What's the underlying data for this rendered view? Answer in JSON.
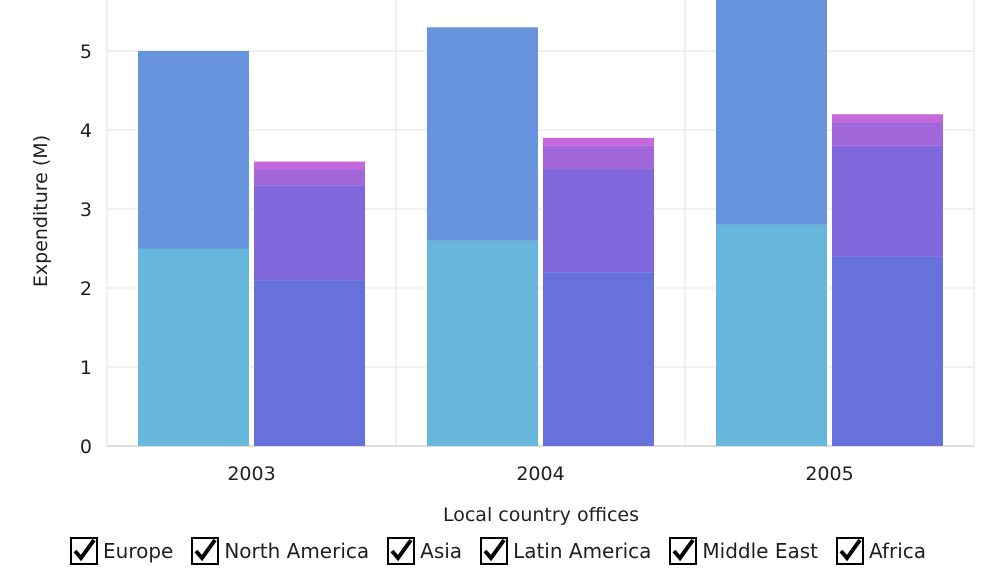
{
  "chart_data": {
    "type": "bar",
    "stacked": true,
    "categories": [
      "2003",
      "2004",
      "2005"
    ],
    "xlabel": "Local country offices",
    "ylabel": "Expenditure (M)",
    "ylim": [
      0,
      5.6
    ],
    "yticks": [
      0,
      1,
      2,
      3,
      4,
      5
    ],
    "grid": true,
    "legend_position": "bottom",
    "stacks": [
      {
        "group": "left",
        "series": [
          {
            "name": "Europe",
            "color": "#67b7dc",
            "values": [
              2.5,
              2.6,
              2.8
            ]
          },
          {
            "name": "North America",
            "color": "#6794dc",
            "values": [
              2.5,
              2.7,
              3.0
            ]
          }
        ]
      },
      {
        "group": "right",
        "series": [
          {
            "name": "Asia",
            "color": "#6771dc",
            "values": [
              2.1,
              2.2,
              2.4
            ]
          },
          {
            "name": "Latin America",
            "color": "#8067dc",
            "values": [
              1.2,
              1.3,
              1.4
            ]
          },
          {
            "name": "Middle East",
            "color": "#a367dc",
            "values": [
              0.2,
              0.3,
              0.3
            ]
          },
          {
            "name": "Africa",
            "color": "#c767dc",
            "values": [
              0.1,
              0.1,
              0.1
            ]
          }
        ]
      }
    ]
  },
  "legend": {
    "items": [
      {
        "label": "Europe"
      },
      {
        "label": "North America"
      },
      {
        "label": "Asia"
      },
      {
        "label": "Latin America"
      },
      {
        "label": "Middle East"
      },
      {
        "label": "Africa"
      }
    ]
  }
}
